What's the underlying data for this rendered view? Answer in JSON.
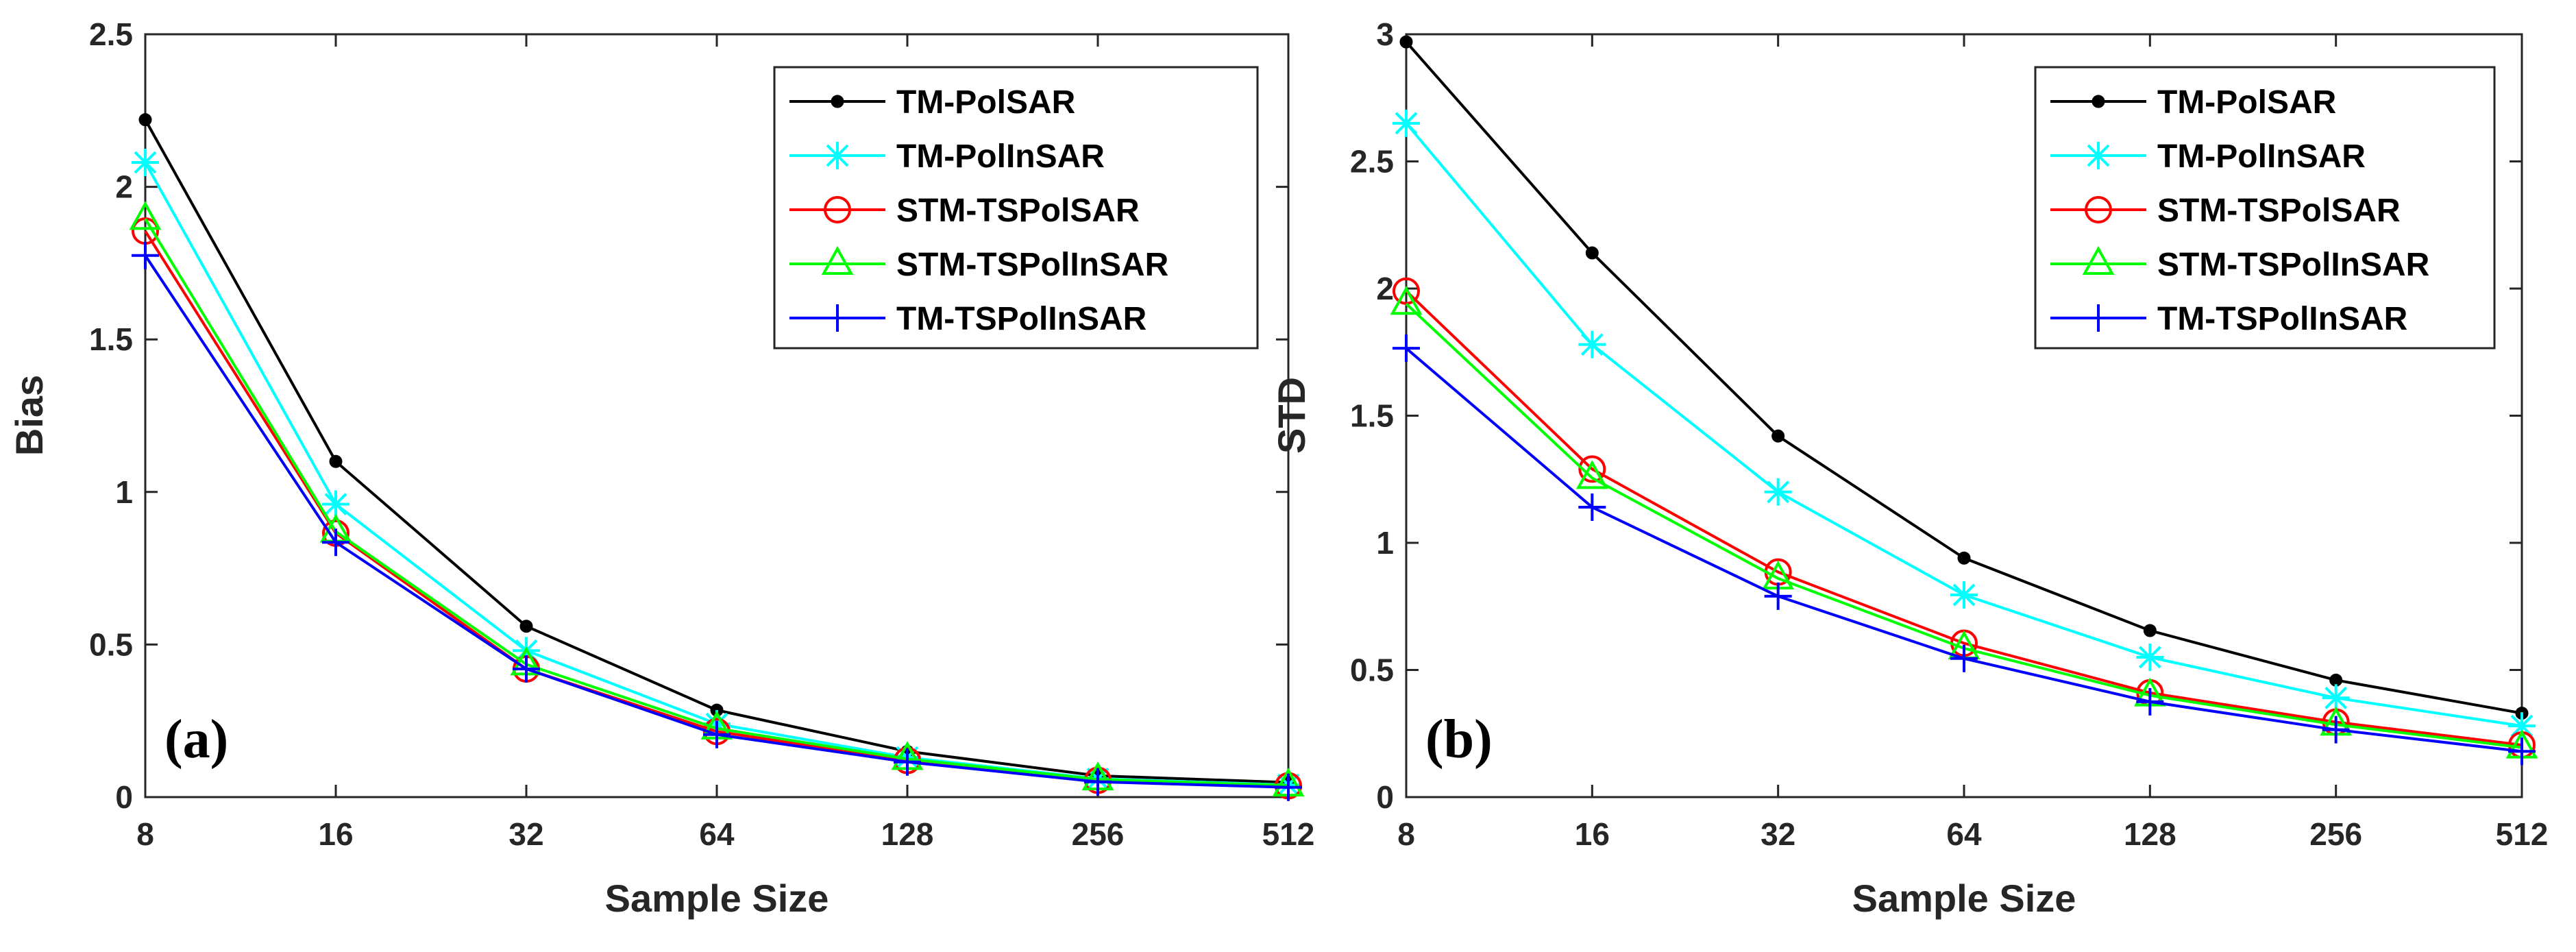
{
  "chart_data": [
    {
      "type": "line",
      "panel_label": "(a)",
      "xlabel": "Sample Size",
      "ylabel": "Bias",
      "x": [
        8,
        16,
        32,
        64,
        128,
        256,
        512
      ],
      "x_tick_labels": [
        "8",
        "16",
        "32",
        "64",
        "128",
        "256",
        "512"
      ],
      "ylim": [
        0,
        2.5
      ],
      "y_ticks": [
        0,
        0.5,
        1,
        1.5,
        2,
        2.5
      ],
      "y_tick_labels": [
        "0",
        "0.5",
        "1",
        "1.5",
        "2",
        "2.5"
      ],
      "legend_position": "top-right",
      "series": [
        {
          "name": "TM-PolSAR",
          "color": "#000000",
          "marker": "dot",
          "values": [
            2.22,
            1.1,
            0.56,
            0.285,
            0.15,
            0.07,
            0.048
          ]
        },
        {
          "name": "TM-PolInSAR",
          "color": "#00FFFF",
          "marker": "asterisk",
          "values": [
            2.08,
            0.96,
            0.48,
            0.24,
            0.13,
            0.06,
            0.04
          ]
        },
        {
          "name": "STM-TSPolSAR",
          "color": "#FF0000",
          "marker": "circle",
          "values": [
            1.855,
            0.865,
            0.42,
            0.215,
            0.12,
            0.055,
            0.037
          ]
        },
        {
          "name": "STM-TSPolInSAR",
          "color": "#00FF00",
          "marker": "triangle",
          "values": [
            1.895,
            0.87,
            0.435,
            0.225,
            0.125,
            0.058,
            0.038
          ]
        },
        {
          "name": "TM-TSPolInSAR",
          "color": "#0000FF",
          "marker": "plus",
          "values": [
            1.775,
            0.835,
            0.42,
            0.205,
            0.115,
            0.05,
            0.032
          ]
        }
      ]
    },
    {
      "type": "line",
      "panel_label": "(b)",
      "xlabel": "Sample Size",
      "ylabel": "STD",
      "x": [
        8,
        16,
        32,
        64,
        128,
        256,
        512
      ],
      "x_tick_labels": [
        "8",
        "16",
        "32",
        "64",
        "128",
        "256",
        "512"
      ],
      "ylim": [
        0,
        3
      ],
      "y_ticks": [
        0,
        0.5,
        1,
        1.5,
        2,
        2.5,
        3
      ],
      "y_tick_labels": [
        "0",
        "0.5",
        "1",
        "1.5",
        "2",
        "2.5",
        "3"
      ],
      "legend_position": "top-right",
      "series": [
        {
          "name": "TM-PolSAR",
          "color": "#000000",
          "marker": "dot",
          "values": [
            2.97,
            2.14,
            1.42,
            0.94,
            0.655,
            0.46,
            0.33
          ]
        },
        {
          "name": "TM-PolInSAR",
          "color": "#00FFFF",
          "marker": "asterisk",
          "values": [
            2.65,
            1.78,
            1.2,
            0.795,
            0.55,
            0.39,
            0.28
          ]
        },
        {
          "name": "STM-TSPolSAR",
          "color": "#FF0000",
          "marker": "circle",
          "values": [
            1.99,
            1.29,
            0.885,
            0.605,
            0.41,
            0.295,
            0.205
          ]
        },
        {
          "name": "STM-TSPolInSAR",
          "color": "#00FF00",
          "marker": "triangle",
          "values": [
            1.94,
            1.255,
            0.86,
            0.585,
            0.4,
            0.285,
            0.195
          ]
        },
        {
          "name": "TM-TSPolInSAR",
          "color": "#0000FF",
          "marker": "plus",
          "values": [
            1.765,
            1.14,
            0.79,
            0.545,
            0.375,
            0.265,
            0.18
          ]
        }
      ]
    }
  ]
}
